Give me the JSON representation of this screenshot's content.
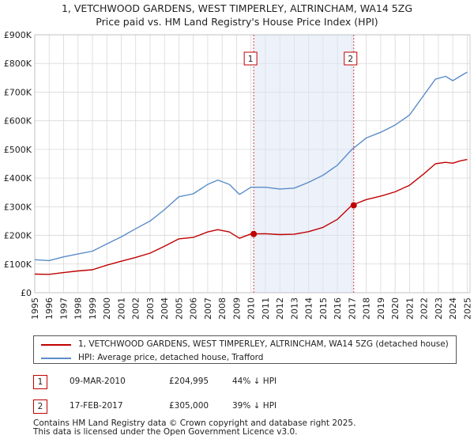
{
  "title": {
    "line1": "1, VETCHWOOD GARDENS, WEST TIMPERLEY, ALTRINCHAM, WA14 5ZG",
    "line2": "Price paid vs. HM Land Registry's House Price Index (HPI)"
  },
  "chart_data": {
    "type": "line",
    "title": "1, VETCHWOOD GARDENS, WEST TIMPERLEY, ALTRINCHAM, WA14 5ZG — Price paid vs. HM Land Registry's House Price Index (HPI)",
    "xlabel": "",
    "ylabel": "",
    "xlim": [
      1995,
      2025.2
    ],
    "ylim": [
      0,
      900000
    ],
    "grid": true,
    "ytick_values": [
      0,
      100000,
      200000,
      300000,
      400000,
      500000,
      600000,
      700000,
      800000,
      900000
    ],
    "ytick_labels": [
      "£0",
      "£100K",
      "£200K",
      "£300K",
      "£400K",
      "£500K",
      "£600K",
      "£700K",
      "£800K",
      "£900K"
    ],
    "xtick_values": [
      1995,
      1996,
      1997,
      1998,
      1999,
      2000,
      2001,
      2002,
      2003,
      2004,
      2005,
      2006,
      2007,
      2008,
      2009,
      2010,
      2011,
      2012,
      2013,
      2014,
      2015,
      2016,
      2017,
      2018,
      2019,
      2020,
      2021,
      2022,
      2023,
      2024,
      2025
    ],
    "xtick_labels": [
      "1995",
      "1996",
      "1997",
      "1998",
      "1999",
      "2000",
      "2001",
      "2002",
      "2003",
      "2004",
      "2005",
      "2006",
      "2007",
      "2008",
      "2009",
      "2010",
      "2011",
      "2012",
      "2013",
      "2014",
      "2015",
      "2016",
      "2017",
      "2018",
      "2019",
      "2020",
      "2021",
      "2022",
      "2023",
      "2024",
      "2025"
    ],
    "x": [
      1995,
      1996,
      1997,
      1998,
      1999,
      2000,
      2001,
      2002,
      2003,
      2004,
      2005,
      2006,
      2007,
      2007.7,
      2008.5,
      2009.2,
      2010,
      2011,
      2012,
      2013,
      2014,
      2015,
      2016,
      2017,
      2018,
      2019,
      2020,
      2021,
      2022,
      2022.8,
      2023.5,
      2024,
      2024.5,
      2025
    ],
    "series": [
      {
        "name": "1, VETCHWOOD GARDENS, WEST TIMPERLEY, ALTRINCHAM, WA14 5ZG (detached house)",
        "color": "#c00000",
        "values": [
          65000,
          64000,
          70000,
          76000,
          80000,
          96000,
          110000,
          123000,
          138000,
          162000,
          188000,
          193000,
          212000,
          220000,
          212000,
          190000,
          204995,
          206000,
          203000,
          204000,
          213000,
          228000,
          256000,
          305000,
          325000,
          337000,
          352000,
          375000,
          415000,
          450000,
          455000,
          452000,
          460000,
          465000
        ]
      },
      {
        "name": "HPI: Average price, detached house, Trafford",
        "color": "#5b8cc8",
        "values": [
          115000,
          112000,
          125000,
          135000,
          145000,
          170000,
          195000,
          223000,
          250000,
          290000,
          335000,
          345000,
          378000,
          393000,
          378000,
          343000,
          368000,
          368000,
          362000,
          365000,
          385000,
          410000,
          445000,
          500000,
          540000,
          560000,
          585000,
          620000,
          690000,
          745000,
          755000,
          740000,
          755000,
          770000
        ]
      }
    ],
    "annotations": [
      {
        "label": "1",
        "x": 2010.19,
        "value": 204995
      },
      {
        "label": "2",
        "x": 2017.13,
        "value": 305000
      }
    ]
  },
  "legend": [
    {
      "label": "1, VETCHWOOD GARDENS, WEST TIMPERLEY, ALTRINCHAM, WA14 5ZG (detached house)",
      "color": "#c00000"
    },
    {
      "label": "HPI: Average price, detached house, Trafford",
      "color": "#5b8cc8"
    }
  ],
  "transactions": [
    {
      "num": "1",
      "date": "09-MAR-2010",
      "price": "£204,995",
      "hpi": "44% ↓ HPI"
    },
    {
      "num": "2",
      "date": "17-FEB-2017",
      "price": "£305,000",
      "hpi": "39% ↓ HPI"
    }
  ],
  "footer": {
    "line1": "Contains HM Land Registry data © Crown copyright and database right 2025.",
    "line2": "This data is licensed under the Open Government Licence v3.0."
  }
}
